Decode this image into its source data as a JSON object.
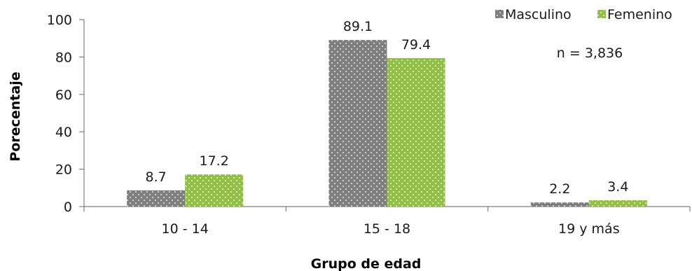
{
  "chart_data": {
    "type": "bar",
    "title": "",
    "xlabel": "Grupo de edad",
    "ylabel": "Porecentaje",
    "categories": [
      "10 - 14",
      "15 - 18",
      "19 y más"
    ],
    "series": [
      {
        "name": "Masculino",
        "values": [
          8.7,
          89.1,
          2.2
        ],
        "color": "#7f7f7f"
      },
      {
        "name": "Femenino",
        "values": [
          17.2,
          79.4,
          3.4
        ],
        "color": "#92c047"
      }
    ],
    "data_labels": [
      [
        "8.7",
        "89.1",
        "2.2"
      ],
      [
        "17.2",
        "79.4",
        "3.4"
      ]
    ],
    "ylim": [
      0,
      100
    ],
    "yticks": [
      0,
      20,
      40,
      60,
      80,
      100
    ],
    "grid": false,
    "legend_position": "top-right",
    "annotation": "n = 3,836",
    "bar_pattern": "dotted"
  }
}
